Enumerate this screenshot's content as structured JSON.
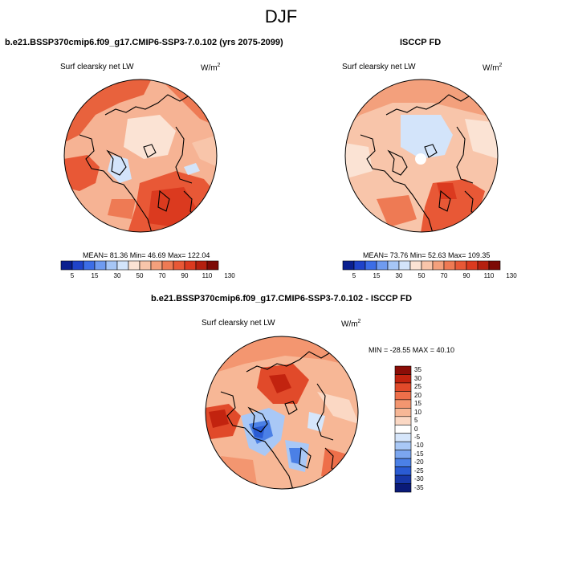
{
  "figure": {
    "title": "DJF"
  },
  "panels": {
    "model": {
      "title": "b.e21.BSSP370cmip6.f09_g17.CMIP6-SSP3-7.0.102 (yrs 2075-2099)",
      "variable": "Surf clearsky net LW",
      "units_base": "W/m",
      "units_exp": "2",
      "stats_text": "MEAN=  81.36  Min=  46.69  Max= 122.04",
      "mean": 81.36,
      "min": 46.69,
      "max": 122.04
    },
    "obs": {
      "title": "ISCCP FD",
      "variable": "Surf clearsky net LW",
      "units_base": "W/m",
      "units_exp": "2",
      "stats_text": "MEAN=  73.76  Min=  52.63  Max= 109.35",
      "mean": 73.76,
      "min": 52.63,
      "max": 109.35
    },
    "diff": {
      "title": "b.e21.BSSP370cmip6.f09_g17.CMIP6-SSP3-7.0.102 - ISCCP FD",
      "variable": "Surf clearsky net LW",
      "units_base": "W/m",
      "units_exp": "2",
      "stats_text": "MIN = -28.55 MAX =  40.10",
      "min": -28.55,
      "max": 40.1
    }
  },
  "colorbars": {
    "absolute": {
      "labels": [
        "5",
        "15",
        "30",
        "50",
        "70",
        "90",
        "110",
        "130"
      ],
      "colors": [
        "#0a1f8f",
        "#1f43c9",
        "#3c6de6",
        "#6f9bf0",
        "#a6c6f6",
        "#d3e4fa",
        "#fbe3d4",
        "#f8c5aa",
        "#f3a07c",
        "#ee7a54",
        "#e85836",
        "#db3a1f",
        "#b5200f",
        "#7d0a06"
      ]
    },
    "diff": {
      "labels": [
        "35",
        "30",
        "25",
        "20",
        "15",
        "10",
        "5",
        "0",
        "-5",
        "-10",
        "-15",
        "-20",
        "-25",
        "-30",
        "-35"
      ],
      "colors": [
        "#8b0d07",
        "#c2230f",
        "#e14a2a",
        "#ee6f4a",
        "#f39670",
        "#f7b796",
        "#fbd8c4",
        "#ffffff",
        "#d6e6fb",
        "#a9c8f6",
        "#7ba6ef",
        "#4b80e6",
        "#2a5bd3",
        "#1737a8",
        "#0a1a78"
      ]
    }
  }
}
